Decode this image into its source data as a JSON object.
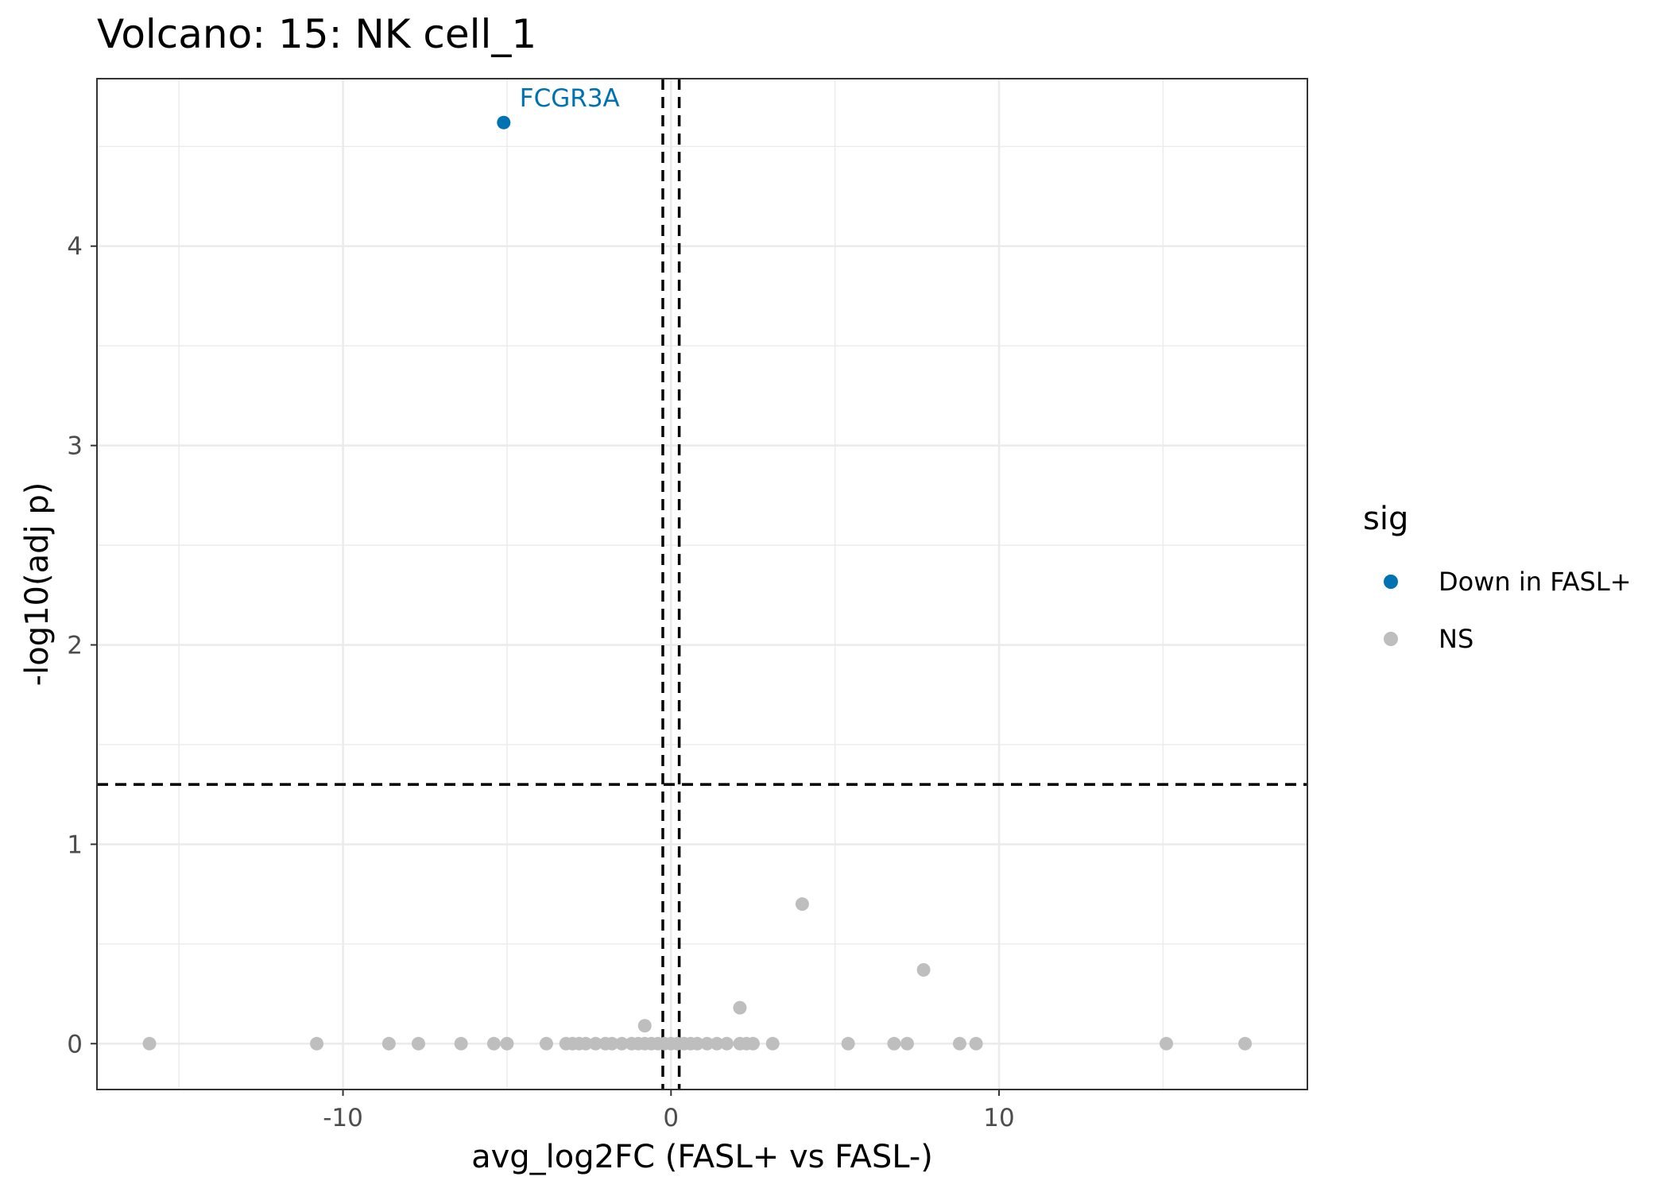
{
  "chart_data": {
    "type": "scatter",
    "title": "Volcano: 15: NK cell_1",
    "xlabel": "avg_log2FC (FASL+ vs FASL-)",
    "ylabel": "-log10(adj p)",
    "xlim": [
      -17.5,
      19.4
    ],
    "ylim": [
      -0.23,
      4.84
    ],
    "x_ticks": [
      -10,
      0,
      10
    ],
    "x_tick_labels": [
      "-10",
      "0",
      "10"
    ],
    "y_ticks": [
      0,
      1,
      2,
      3,
      4
    ],
    "y_tick_labels": [
      "0",
      "1",
      "2",
      "3",
      "4"
    ],
    "grid": true,
    "reference_lines": {
      "vertical": [
        -0.25,
        0.25
      ],
      "horizontal": [
        1.3
      ],
      "style": "dashed"
    },
    "legend": {
      "title": "sig",
      "position": "right",
      "entries": [
        {
          "label": "Down in FASL+",
          "color": "#0072B2"
        },
        {
          "label": "NS",
          "color": "#BEBEBE"
        }
      ]
    },
    "series": [
      {
        "name": "Down in FASL+",
        "color": "#0072B2",
        "points": [
          {
            "x": -5.1,
            "y": 4.62,
            "label": "FCGR3A"
          }
        ]
      },
      {
        "name": "NS",
        "color": "#BEBEBE",
        "points": [
          {
            "x": -15.9,
            "y": 0
          },
          {
            "x": -10.8,
            "y": 0
          },
          {
            "x": -8.6,
            "y": 0
          },
          {
            "x": -7.7,
            "y": 0
          },
          {
            "x": -6.4,
            "y": 0
          },
          {
            "x": -5.4,
            "y": 0
          },
          {
            "x": -5.0,
            "y": 0
          },
          {
            "x": -3.8,
            "y": 0
          },
          {
            "x": -3.2,
            "y": 0
          },
          {
            "x": -3.0,
            "y": 0
          },
          {
            "x": -2.8,
            "y": 0
          },
          {
            "x": -2.6,
            "y": 0
          },
          {
            "x": -2.3,
            "y": 0
          },
          {
            "x": -2.0,
            "y": 0
          },
          {
            "x": -1.8,
            "y": 0
          },
          {
            "x": -1.5,
            "y": 0
          },
          {
            "x": -1.2,
            "y": 0
          },
          {
            "x": -1.0,
            "y": 0
          },
          {
            "x": -0.8,
            "y": 0
          },
          {
            "x": -0.6,
            "y": 0
          },
          {
            "x": -0.4,
            "y": 0
          },
          {
            "x": -0.2,
            "y": 0
          },
          {
            "x": 0.0,
            "y": 0
          },
          {
            "x": 0.2,
            "y": 0
          },
          {
            "x": 0.4,
            "y": 0
          },
          {
            "x": 0.6,
            "y": 0
          },
          {
            "x": 0.8,
            "y": 0
          },
          {
            "x": 1.1,
            "y": 0
          },
          {
            "x": 1.4,
            "y": 0
          },
          {
            "x": 1.7,
            "y": 0
          },
          {
            "x": 2.1,
            "y": 0
          },
          {
            "x": 2.3,
            "y": 0
          },
          {
            "x": 2.5,
            "y": 0
          },
          {
            "x": 3.1,
            "y": 0
          },
          {
            "x": 5.4,
            "y": 0
          },
          {
            "x": 6.8,
            "y": 0
          },
          {
            "x": 7.2,
            "y": 0
          },
          {
            "x": 8.8,
            "y": 0
          },
          {
            "x": 9.3,
            "y": 0
          },
          {
            "x": 15.1,
            "y": 0
          },
          {
            "x": 17.5,
            "y": 0
          },
          {
            "x": -0.8,
            "y": 0.09
          },
          {
            "x": 2.1,
            "y": 0.18
          },
          {
            "x": 7.7,
            "y": 0.37
          },
          {
            "x": 4.0,
            "y": 0.7
          }
        ]
      }
    ]
  }
}
